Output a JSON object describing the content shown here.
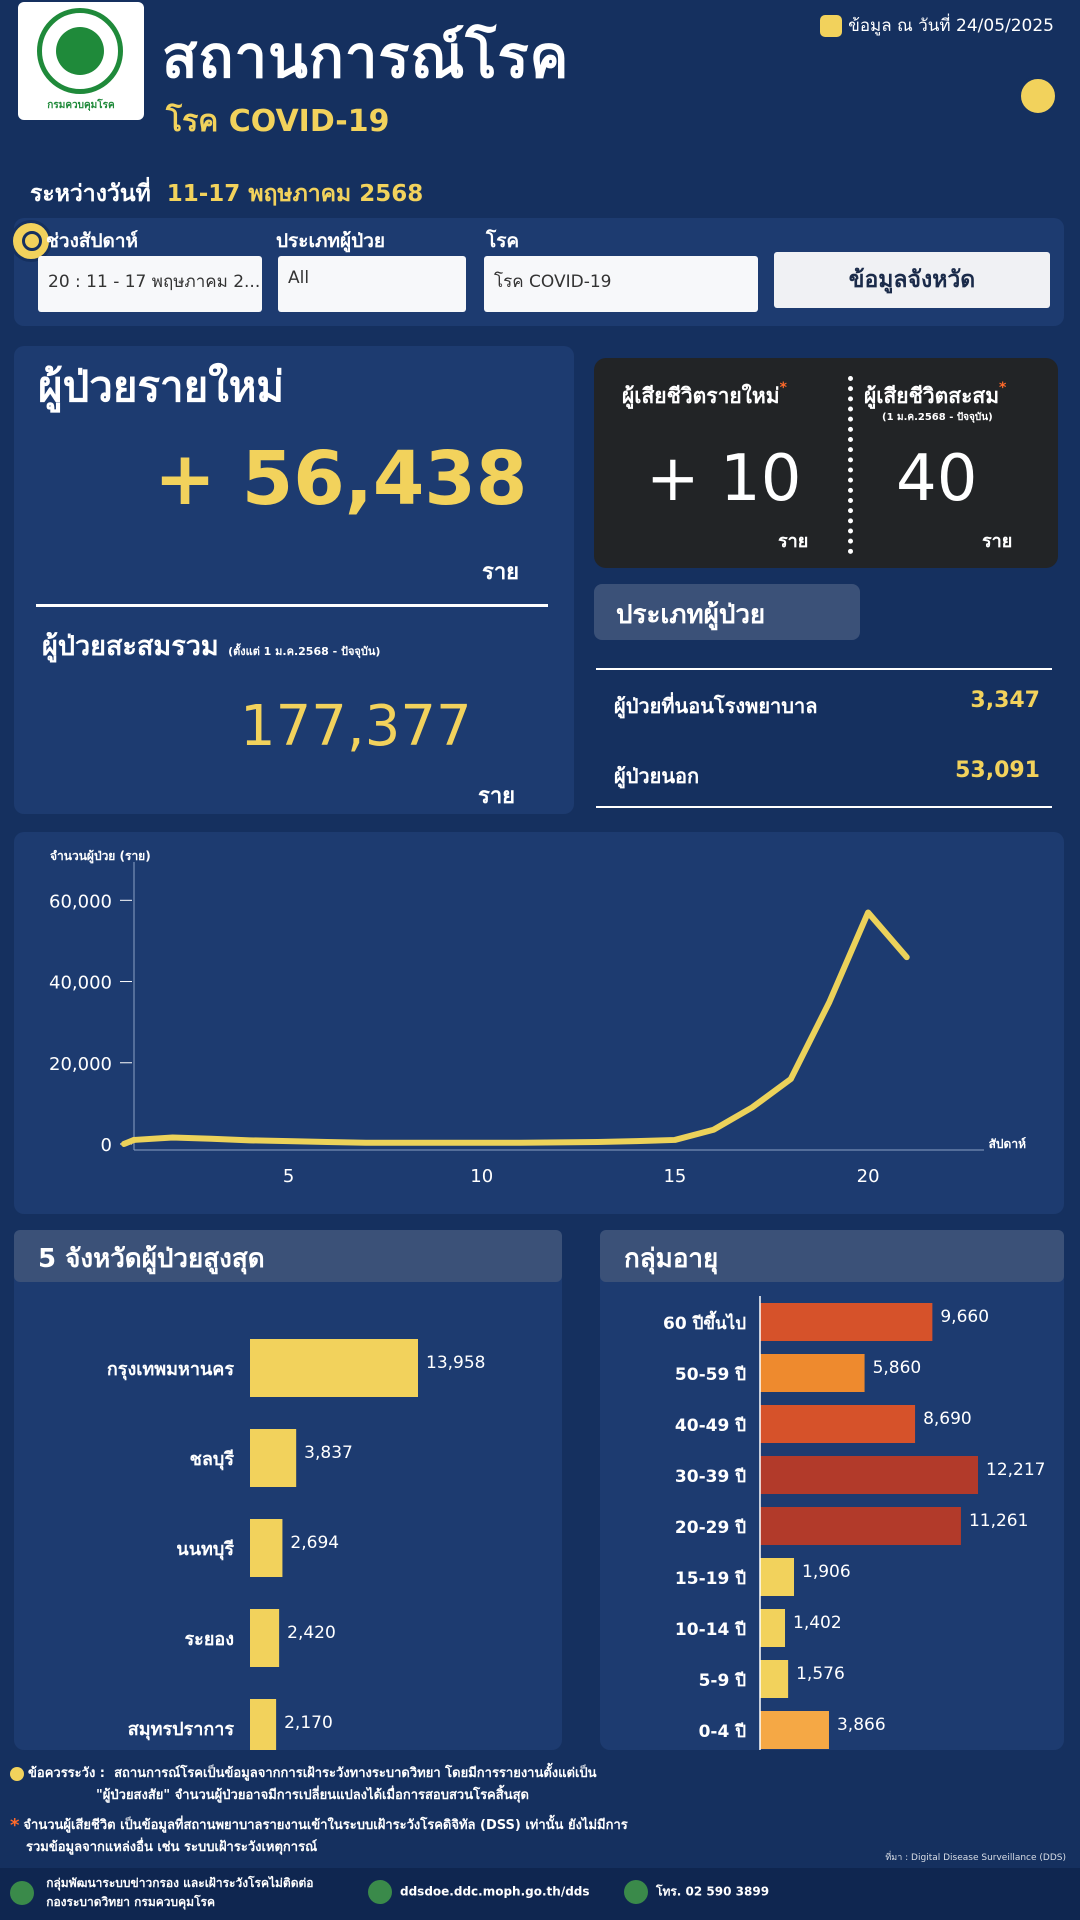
{
  "header": {
    "logo_text": "กรมควบคุมโรค",
    "title": "สถานการณ์โรค",
    "subtitle": "โรค COVID-19",
    "update_label": "ข้อมูล ณ วันที่ 24/05/2025",
    "range_label": "ระหว่างวันที่",
    "range_value": "11-17 พฤษภาคม 2568"
  },
  "filters": {
    "week_label": "ช่วงสัปดาห์",
    "week_value": "20 : 11 - 17 พฤษภาคม 2...",
    "type_label": "ประเภทผู้ป่วย",
    "type_value": "All",
    "disease_label": "โรค",
    "disease_value": "โรค COVID-19",
    "province_button": "ข้อมูลจังหวัด"
  },
  "summary": {
    "new_cases_label": "ผู้ป่วยรายใหม่",
    "new_cases_value": "+ 56,438",
    "unit": "ราย",
    "cumulative_label": "ผู้ป่วยสะสมรวม",
    "cumulative_note": "(ตั้งแต่ 1 ม.ค.2568 - ปัจจุบัน)",
    "cumulative_value": "177,377"
  },
  "deaths": {
    "new_label": "ผู้เสียชีวิตรายใหม่",
    "new_value": "+ 10",
    "cum_label": "ผู้เสียชีวิตสะสม",
    "cum_note": "(1 ม.ค.2568 - ปัจจุบัน)",
    "cum_value": "40",
    "star": "*",
    "unit": "ราย"
  },
  "patient_type": {
    "title": "ประเภทผู้ป่วย",
    "rows": [
      {
        "label": "ผู้ป่วยที่นอนโรงพยาบาล",
        "value": "3,347"
      },
      {
        "label": "ผู้ป่วยนอก",
        "value": "53,091"
      }
    ]
  },
  "chart_data": [
    {
      "type": "line",
      "ylabel": "จำนวนผู้ป่วย (ราย)",
      "xlabel": "สัปดาห์",
      "x": [
        1,
        2,
        3,
        4,
        5,
        6,
        7,
        8,
        9,
        10,
        11,
        12,
        13,
        14,
        15,
        16,
        17,
        18,
        19,
        20,
        21
      ],
      "values": [
        1000,
        1600,
        1300,
        900,
        700,
        500,
        300,
        300,
        300,
        300,
        300,
        400,
        500,
        700,
        1000,
        3500,
        9000,
        16000,
        35000,
        57000,
        46000
      ],
      "xticks": [
        5,
        10,
        15,
        20
      ],
      "yticks": [
        0,
        20000,
        40000,
        60000
      ],
      "ytick_labels": [
        "0",
        "20,000",
        "40,000",
        "60,000"
      ],
      "xlim": [
        1,
        23
      ],
      "ylim": [
        0,
        65000
      ],
      "color": "#ecd25a"
    },
    {
      "type": "bar",
      "title": "5 จังหวัดผู้ป่วยสูงสุด",
      "orientation": "horizontal",
      "categories": [
        "กรุงเทพมหานคร",
        "ชลบุรี",
        "นนทบุรี",
        "ระยอง",
        "สมุทรปราการ"
      ],
      "values": [
        13958,
        3837,
        2694,
        2420,
        2170
      ],
      "labels": [
        "13,958",
        "3,837",
        "2,694",
        "2,420",
        "2,170"
      ],
      "color": "#f2d25c"
    },
    {
      "type": "bar",
      "title": "กลุ่มอายุ",
      "orientation": "horizontal",
      "categories": [
        "60 ปีขึ้นไป",
        "50-59 ปี",
        "40-49 ปี",
        "30-39 ปี",
        "20-29 ปี",
        "15-19 ปี",
        "10-14 ปี",
        "5-9 ปี",
        "0-4 ปี"
      ],
      "values": [
        9660,
        5860,
        8690,
        12217,
        11261,
        1906,
        1402,
        1576,
        3866
      ],
      "labels": [
        "9,660",
        "5,860",
        "8,690",
        "12,217",
        "11,261",
        "1,906",
        "1,402",
        "1,576",
        "3,866"
      ],
      "colors": [
        "#d6522a",
        "#ee8a2e",
        "#d6522a",
        "#b23a2a",
        "#b23a2a",
        "#f2d25c",
        "#f2d25c",
        "#f2d25c",
        "#f5a845"
      ]
    }
  ],
  "footer": {
    "note1_label": "ข้อควรระวัง :",
    "note1_text": "สถานการณ์โรคเป็นข้อมูลจากการเฝ้าระวังทางระบาดวิทยา โดยมีการรายงานตั้งแต่เป็น",
    "note1_text2": "\"ผู้ป่วยสงสัย\" จำนวนผู้ป่วยอาจมีการเปลี่ยนแปลงได้เมื่อการสอบสวนโรคสิ้นสุด",
    "note2_text": "จำนวนผู้เสียชีวิต เป็นข้อมูลที่สถานพยาบาลรายงานเข้าในระบบเฝ้าระวังโรคดิจิทัล (DSS) เท่านั้น ยังไม่มีการ",
    "note2_text2": "รวมข้อมูลจากแหล่งอื่น เช่น ระบบเฝ้าระวังเหตุการณ์",
    "source": "ที่มา : Digital Disease Surveillance (DDS)",
    "org1": "กลุ่มพัฒนาระบบข่าวกรอง และเฝ้าระวังโรคไม่ติดต่อ",
    "org2": "กองระบาดวิทยา กรมควบคุมโรค",
    "website": "ddsdoe.ddc.moph.go.th/dds",
    "phone": "โทร. 02 590 3899"
  }
}
